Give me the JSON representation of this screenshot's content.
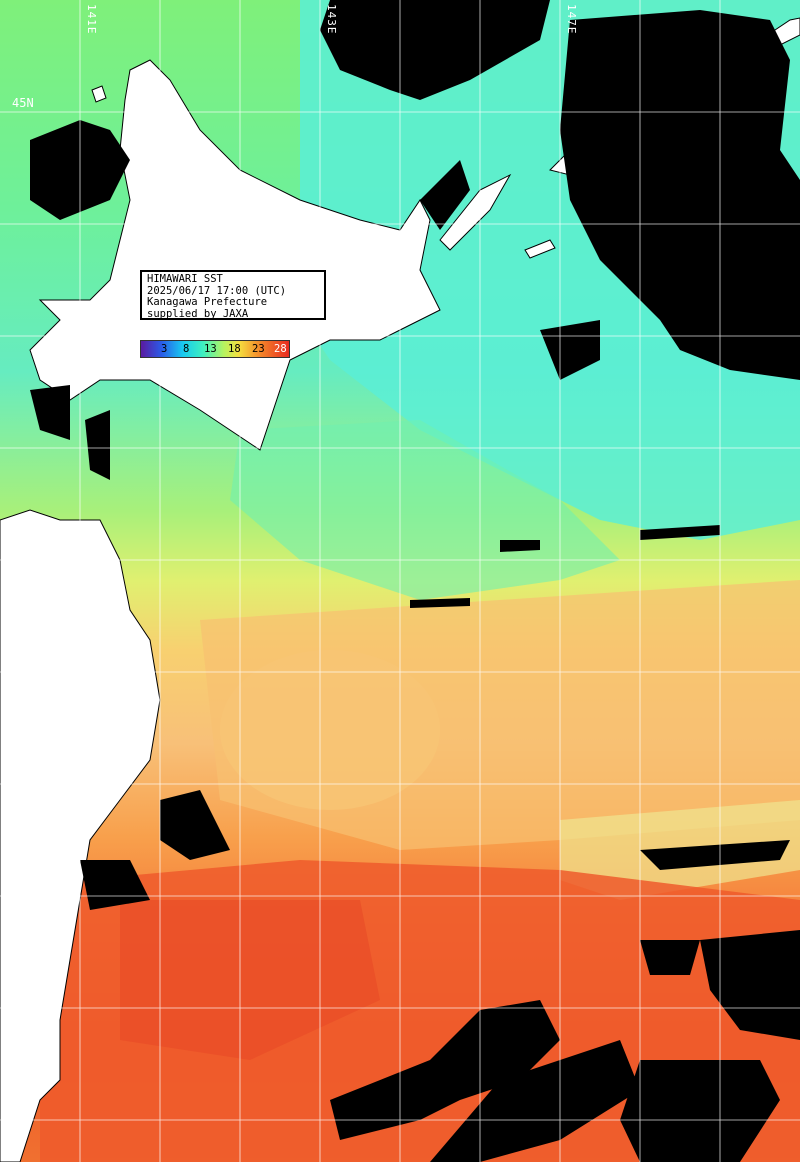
{
  "info": {
    "line1": "HIMAWARI SST",
    "line2": "2025/06/17 17:00 (UTC)",
    "line3": "Kanagawa Prefecture",
    "line4": "supplied by JAXA"
  },
  "legend": {
    "ticks": [
      "3",
      "8",
      "13",
      "18",
      "23",
      "28"
    ]
  },
  "grid_labels": {
    "lon": [
      "141E",
      "143E",
      "147E"
    ],
    "lat": [
      "45N"
    ]
  },
  "colors": {
    "land": "#ffffff",
    "cloud": "#000000",
    "cold_water": "#5ef0d0",
    "mid_water": "#b8f070",
    "warm_water": "#f8a848",
    "hot_water": "#ee5a2c",
    "grid": "#ffffff"
  }
}
